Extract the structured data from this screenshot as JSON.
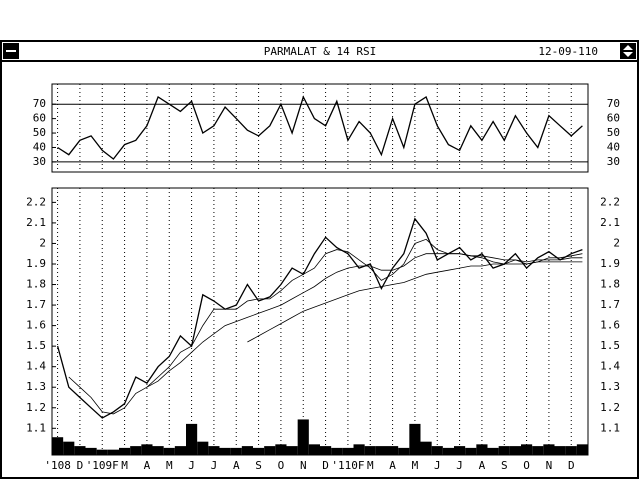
{
  "window": {
    "title": "PARMALAT & 14 RSI",
    "date": "12-09-110"
  },
  "chart_data": [
    {
      "type": "line",
      "ylim": [
        23,
        84
      ],
      "yticks": [
        30,
        40,
        50,
        60,
        70
      ],
      "ref_lines": [
        30,
        70
      ],
      "color": "#000000",
      "series": [
        {
          "color": "#000000",
          "values": [
            40,
            35,
            45,
            48,
            38,
            32,
            42,
            45,
            55,
            75,
            70,
            65,
            72,
            50,
            55,
            68,
            60,
            52,
            48,
            55,
            70,
            50,
            75,
            60,
            55,
            72,
            45,
            58,
            50,
            35,
            60,
            40,
            70,
            75,
            55,
            42,
            38,
            55,
            45,
            58,
            45,
            62,
            50,
            40,
            62,
            55,
            48,
            55
          ]
        }
      ]
    },
    {
      "type": "line",
      "ylim": [
        0.97,
        2.27
      ],
      "yticks": [
        1.1,
        1.2,
        1.3,
        1.4,
        1.5,
        1.6,
        1.7,
        1.8,
        1.9,
        2.0,
        2.1,
        2.2
      ],
      "categories": [
        "'108",
        null,
        "D",
        null,
        "'109F",
        null,
        "M",
        null,
        "A",
        null,
        "M",
        null,
        "J",
        null,
        "J",
        null,
        "A",
        null,
        "S",
        null,
        "O",
        null,
        "N",
        null,
        "D",
        null,
        "'110F",
        null,
        "M",
        null,
        "A",
        null,
        "M",
        null,
        "J",
        null,
        "J",
        null,
        "A",
        null,
        "S",
        null,
        "O",
        null,
        "N",
        null,
        "D",
        null
      ],
      "grid": true,
      "series": [
        {
          "color": "#000000",
          "values": [
            1.5,
            1.3,
            1.25,
            1.2,
            1.15,
            1.18,
            1.22,
            1.35,
            1.32,
            1.4,
            1.45,
            1.55,
            1.5,
            1.75,
            1.72,
            1.68,
            1.7,
            1.8,
            1.72,
            1.74,
            1.8,
            1.88,
            1.85,
            1.95,
            2.03,
            1.98,
            1.95,
            1.88,
            1.9,
            1.78,
            1.88,
            1.95,
            2.12,
            2.05,
            1.92,
            1.95,
            1.98,
            1.92,
            1.95,
            1.88,
            1.9,
            1.95,
            1.88,
            1.93,
            1.96,
            1.92,
            1.95,
            1.97
          ]
        },
        {
          "color": "#000000",
          "values": [
            null,
            1.35,
            1.3,
            1.25,
            1.18,
            1.17,
            1.2,
            1.27,
            1.3,
            1.35,
            1.4,
            1.47,
            1.5,
            1.6,
            1.68,
            1.68,
            1.68,
            1.72,
            1.73,
            1.73,
            1.77,
            1.82,
            1.85,
            1.88,
            1.95,
            1.97,
            1.96,
            1.92,
            1.88,
            1.82,
            1.85,
            1.9,
            2.0,
            2.02,
            1.97,
            1.95,
            1.95,
            1.94,
            1.93,
            1.91,
            1.9,
            1.92,
            1.9,
            1.91,
            1.93,
            1.93,
            1.94,
            1.95
          ]
        },
        {
          "color": "#000000",
          "values": [
            null,
            null,
            null,
            null,
            null,
            null,
            null,
            null,
            1.3,
            1.33,
            1.38,
            1.42,
            1.47,
            1.52,
            1.56,
            1.6,
            1.62,
            1.64,
            1.66,
            1.68,
            1.7,
            1.73,
            1.76,
            1.79,
            1.83,
            1.86,
            1.88,
            1.89,
            1.89,
            1.87,
            1.87,
            1.89,
            1.93,
            1.95,
            1.95,
            1.95,
            1.95,
            1.94,
            1.94,
            1.93,
            1.92,
            1.92,
            1.91,
            1.92,
            1.92,
            1.92,
            1.93,
            1.93
          ]
        },
        {
          "color": "#000000",
          "values": [
            null,
            null,
            null,
            null,
            null,
            null,
            null,
            null,
            null,
            null,
            null,
            null,
            null,
            null,
            null,
            null,
            null,
            1.52,
            1.55,
            1.58,
            1.61,
            1.64,
            1.67,
            1.69,
            1.71,
            1.73,
            1.75,
            1.77,
            1.78,
            1.79,
            1.8,
            1.81,
            1.83,
            1.85,
            1.86,
            1.87,
            1.88,
            1.89,
            1.89,
            1.9,
            1.9,
            1.9,
            1.9,
            1.91,
            1.91,
            1.91,
            1.91,
            1.91
          ]
        }
      ],
      "volume_lim": [
        0,
        45
      ],
      "volume": [
        20,
        15,
        10,
        8,
        6,
        6,
        8,
        10,
        12,
        10,
        8,
        10,
        35,
        15,
        10,
        8,
        8,
        10,
        8,
        10,
        12,
        10,
        40,
        12,
        10,
        8,
        8,
        12,
        10,
        10,
        10,
        8,
        35,
        15,
        10,
        8,
        10,
        8,
        12,
        8,
        10,
        10,
        12,
        10,
        12,
        10,
        10,
        12
      ]
    }
  ]
}
